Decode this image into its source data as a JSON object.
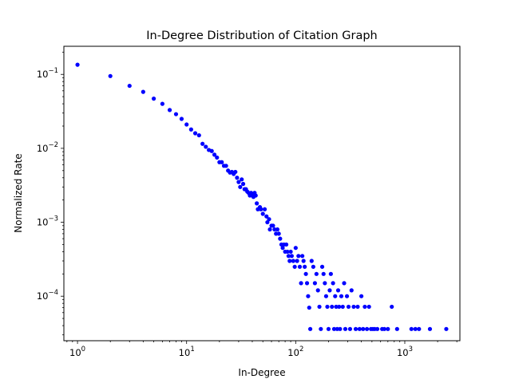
{
  "chart_data": {
    "type": "scatter",
    "title": "In-Degree Distribution of Citation Graph",
    "xlabel": "In-Degree",
    "ylabel": "Normalized Rate",
    "xscale": "log",
    "yscale": "log",
    "xlim": [
      0.75,
      3200
    ],
    "ylim": [
      2.5e-05,
      0.24
    ],
    "grid": false,
    "marker_color": "#0000ff",
    "x_ticks": [
      {
        "value": 1,
        "base": "10",
        "exp": "0"
      },
      {
        "value": 10,
        "base": "10",
        "exp": "1"
      },
      {
        "value": 100,
        "base": "10",
        "exp": "2"
      },
      {
        "value": 1000,
        "base": "10",
        "exp": "3"
      }
    ],
    "y_ticks": [
      {
        "value": 0.0001,
        "base": "10",
        "exp": "−4"
      },
      {
        "value": 0.001,
        "base": "10",
        "exp": "−3"
      },
      {
        "value": 0.01,
        "base": "10",
        "exp": "−2"
      },
      {
        "value": 0.1,
        "base": "10",
        "exp": "−1"
      }
    ],
    "points": [
      [
        1,
        0.135
      ],
      [
        2,
        0.095
      ],
      [
        3,
        0.07
      ],
      [
        4,
        0.058
      ],
      [
        5,
        0.047
      ],
      [
        6,
        0.04
      ],
      [
        7,
        0.033
      ],
      [
        8,
        0.029
      ],
      [
        9,
        0.025
      ],
      [
        10,
        0.021
      ],
      [
        11,
        0.018
      ],
      [
        12,
        0.016
      ],
      [
        13,
        0.015
      ],
      [
        14,
        0.0115
      ],
      [
        15,
        0.0105
      ],
      [
        16,
        0.0095
      ],
      [
        17,
        0.0092
      ],
      [
        18,
        0.0082
      ],
      [
        19,
        0.0075
      ],
      [
        20,
        0.0065
      ],
      [
        21,
        0.0065
      ],
      [
        22,
        0.0058
      ],
      [
        23,
        0.0058
      ],
      [
        24,
        0.005
      ],
      [
        25,
        0.0047
      ],
      [
        26,
        0.0048
      ],
      [
        27,
        0.0045
      ],
      [
        28,
        0.0048
      ],
      [
        29,
        0.004
      ],
      [
        30,
        0.0035
      ],
      [
        31,
        0.003
      ],
      [
        32,
        0.0038
      ],
      [
        33,
        0.0033
      ],
      [
        34,
        0.0028
      ],
      [
        35,
        0.0028
      ],
      [
        36,
        0.0026
      ],
      [
        37,
        0.0025
      ],
      [
        38,
        0.0023
      ],
      [
        39,
        0.0025
      ],
      [
        40,
        0.0023
      ],
      [
        41,
        0.0022
      ],
      [
        42,
        0.0025
      ],
      [
        43,
        0.0023
      ],
      [
        44,
        0.0018
      ],
      [
        45,
        0.0015
      ],
      [
        47,
        0.0016
      ],
      [
        48,
        0.0015
      ],
      [
        50,
        0.0013
      ],
      [
        52,
        0.0015
      ],
      [
        54,
        0.0012
      ],
      [
        55,
        0.001
      ],
      [
        57,
        0.0011
      ],
      [
        58,
        0.0008
      ],
      [
        60,
        0.0009
      ],
      [
        62,
        0.0009
      ],
      [
        64,
        0.0008
      ],
      [
        66,
        0.0007
      ],
      [
        68,
        0.0008
      ],
      [
        70,
        0.0007
      ],
      [
        72,
        0.0006
      ],
      [
        74,
        0.0005
      ],
      [
        76,
        0.00045
      ],
      [
        78,
        0.0005
      ],
      [
        80,
        0.0004
      ],
      [
        82,
        0.0005
      ],
      [
        84,
        0.0004
      ],
      [
        86,
        0.00035
      ],
      [
        88,
        0.0003
      ],
      [
        90,
        0.0004
      ],
      [
        92,
        0.00035
      ],
      [
        95,
        0.0003
      ],
      [
        98,
        0.00025
      ],
      [
        100,
        0.00045
      ],
      [
        103,
        0.0003
      ],
      [
        106,
        0.00035
      ],
      [
        109,
        0.00025
      ],
      [
        112,
        0.00015
      ],
      [
        115,
        0.00035
      ],
      [
        118,
        0.0003
      ],
      [
        121,
        0.00025
      ],
      [
        124,
        0.0002
      ],
      [
        127,
        0.00015
      ],
      [
        130,
        0.0001
      ],
      [
        133,
        7e-05
      ],
      [
        136,
        3.6e-05
      ],
      [
        140,
        0.0003
      ],
      [
        145,
        0.00025
      ],
      [
        150,
        0.00015
      ],
      [
        155,
        0.0002
      ],
      [
        160,
        0.00012
      ],
      [
        165,
        7.2e-05
      ],
      [
        170,
        3.6e-05
      ],
      [
        175,
        0.00025
      ],
      [
        180,
        0.0002
      ],
      [
        185,
        0.00015
      ],
      [
        190,
        0.0001
      ],
      [
        195,
        7.2e-05
      ],
      [
        200,
        3.6e-05
      ],
      [
        205,
        0.00012
      ],
      [
        210,
        0.0002
      ],
      [
        215,
        7.2e-05
      ],
      [
        220,
        0.00015
      ],
      [
        225,
        3.6e-05
      ],
      [
        230,
        0.0001
      ],
      [
        235,
        7.2e-05
      ],
      [
        240,
        3.6e-05
      ],
      [
        245,
        0.00012
      ],
      [
        250,
        7.2e-05
      ],
      [
        255,
        3.6e-05
      ],
      [
        262,
        0.0001
      ],
      [
        270,
        7.2e-05
      ],
      [
        278,
        0.00015
      ],
      [
        285,
        3.6e-05
      ],
      [
        295,
        0.0001
      ],
      [
        305,
        7.2e-05
      ],
      [
        315,
        3.6e-05
      ],
      [
        325,
        0.00012
      ],
      [
        340,
        7.2e-05
      ],
      [
        355,
        3.6e-05
      ],
      [
        370,
        7.2e-05
      ],
      [
        385,
        3.6e-05
      ],
      [
        400,
        0.0001
      ],
      [
        415,
        3.6e-05
      ],
      [
        430,
        7.2e-05
      ],
      [
        450,
        3.6e-05
      ],
      [
        470,
        7.2e-05
      ],
      [
        490,
        3.6e-05
      ],
      [
        510,
        3.6e-05
      ],
      [
        530,
        3.6e-05
      ],
      [
        560,
        3.6e-05
      ],
      [
        620,
        3.6e-05
      ],
      [
        650,
        3.6e-05
      ],
      [
        700,
        3.6e-05
      ],
      [
        760,
        7.2e-05
      ],
      [
        850,
        3.6e-05
      ],
      [
        1150,
        3.6e-05
      ],
      [
        1250,
        3.6e-05
      ],
      [
        1350,
        3.6e-05
      ],
      [
        1700,
        3.6e-05
      ],
      [
        2400,
        3.6e-05
      ]
    ]
  }
}
